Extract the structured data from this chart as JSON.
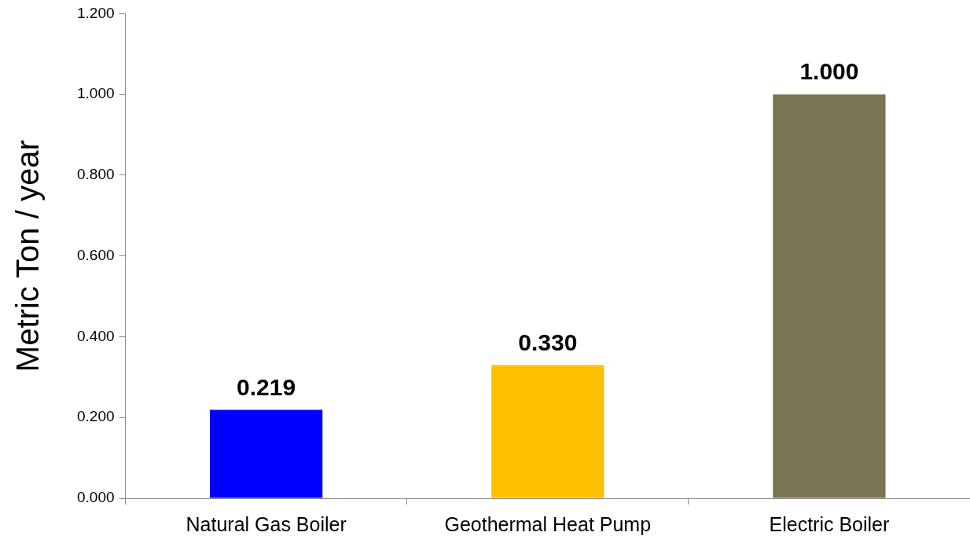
{
  "chart_data": {
    "type": "bar",
    "ylabel": "Metric Ton / year",
    "categories": [
      "Natural Gas Boiler",
      "Geothermal Heat Pump",
      "Electric Boiler"
    ],
    "values": [
      0.219,
      0.33,
      1.0
    ],
    "colors": [
      "#0000ff",
      "#ffc000",
      "#787454"
    ],
    "value_labels": [
      "0.219",
      "0.330",
      "1.000"
    ],
    "ylim": [
      0,
      1.2
    ],
    "yticks": [
      {
        "value": 0,
        "label": "0.000"
      },
      {
        "value": 0.2,
        "label": "0.200"
      },
      {
        "value": 0.4,
        "label": "0.400"
      },
      {
        "value": 0.6,
        "label": "0.600"
      },
      {
        "value": 0.8,
        "label": "0.800"
      },
      {
        "value": 1.0,
        "label": "1.000"
      },
      {
        "value": 1.2,
        "label": "1.200"
      }
    ],
    "grid": false,
    "legend": false
  }
}
